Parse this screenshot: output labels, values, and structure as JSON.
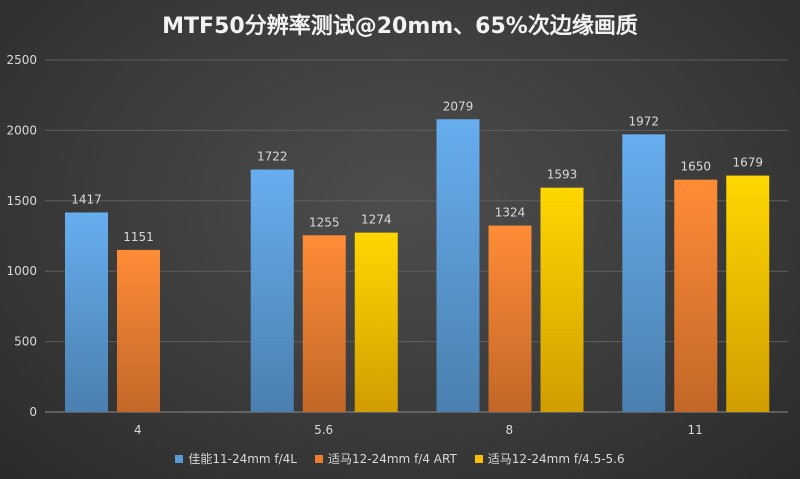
{
  "chart_data": {
    "type": "bar",
    "title": "MTF50分辨率测试@20mm、65%次边缘画质",
    "categories": [
      "4",
      "5.6",
      "8",
      "11"
    ],
    "ylim": [
      0,
      2500
    ],
    "yticks": [
      0,
      500,
      1000,
      1500,
      2000,
      2500
    ],
    "grid": true,
    "legend_position": "bottom",
    "series": [
      {
        "name": "佳能11-24mm f/4L",
        "color": "#5b9bd5",
        "values": [
          1417,
          1722,
          2079,
          1972
        ]
      },
      {
        "name": "适马12-24mm f/4 ART",
        "color": "#ed7d31",
        "values": [
          1151,
          1255,
          1324,
          1650
        ]
      },
      {
        "name": "适马12-24mm f/4.5-5.6",
        "color": "#ffc000",
        "values": [
          null,
          1274,
          1593,
          1679
        ]
      }
    ]
  }
}
